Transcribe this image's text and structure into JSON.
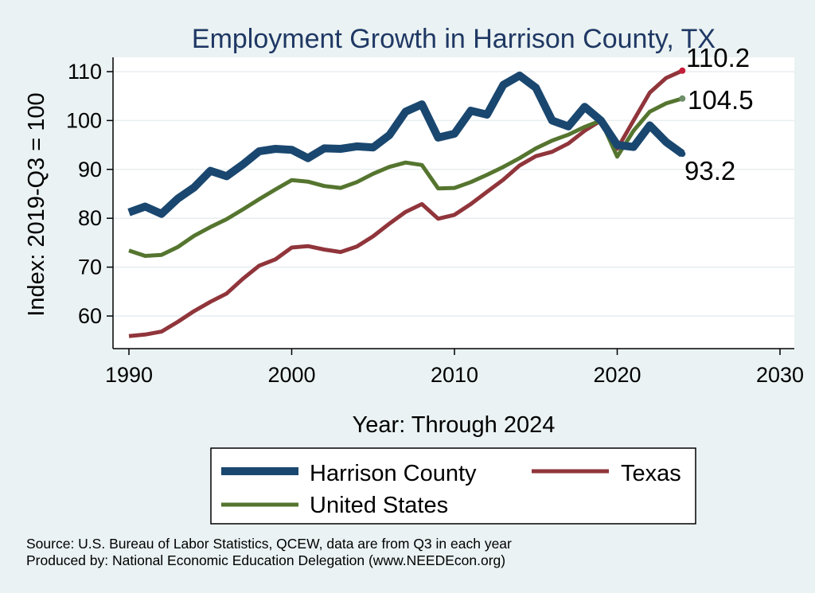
{
  "chart_data": {
    "type": "line",
    "title": "Employment Growth in Harrison County, TX",
    "xlabel": "Year: Through 2024",
    "ylabel": "Index: 2019-Q3 = 100",
    "xlim": [
      1990,
      2030
    ],
    "ylim": [
      54,
      113
    ],
    "x_ticks": [
      "1990",
      "2000",
      "2010",
      "2020",
      "2030"
    ],
    "y_ticks": [
      "60",
      "70",
      "80",
      "90",
      "100",
      "110"
    ],
    "grid": true,
    "legend_position": "bottom",
    "x": [
      1990,
      1991,
      1992,
      1993,
      1994,
      1995,
      1996,
      1997,
      1998,
      1999,
      2000,
      2001,
      2002,
      2003,
      2004,
      2005,
      2006,
      2007,
      2008,
      2009,
      2010,
      2011,
      2012,
      2013,
      2014,
      2015,
      2016,
      2017,
      2018,
      2019,
      2020,
      2021,
      2022,
      2023,
      2024
    ],
    "series": [
      {
        "name": "Harrison  County",
        "color": "#1a476f",
        "values": [
          81.2,
          82.4,
          80.9,
          84.0,
          86.3,
          89.7,
          88.6,
          91.0,
          93.7,
          94.2,
          94.0,
          92.3,
          94.3,
          94.2,
          94.7,
          94.5,
          97.0,
          101.8,
          103.3,
          96.5,
          97.3,
          102.0,
          101.2,
          107.3,
          109.2,
          106.7,
          100.0,
          98.8,
          102.8,
          100.0,
          95.0,
          94.6,
          99.0,
          95.6,
          93.2
        ]
      },
      {
        "name": "Texas",
        "color": "#90353b",
        "values": [
          55.9,
          56.2,
          56.8,
          58.8,
          61.0,
          62.9,
          64.6,
          67.6,
          70.3,
          71.6,
          74.0,
          74.3,
          73.6,
          73.1,
          74.2,
          76.3,
          78.9,
          81.3,
          82.9,
          79.9,
          80.7,
          82.9,
          85.4,
          87.9,
          90.8,
          92.7,
          93.6,
          95.3,
          97.9,
          100.0,
          94.2,
          100.0,
          105.7,
          108.7,
          110.2
        ]
      },
      {
        "name": "United States",
        "color": "#55752f",
        "values": [
          73.4,
          72.3,
          72.5,
          74.1,
          76.4,
          78.2,
          79.8,
          81.8,
          83.9,
          85.9,
          87.8,
          87.5,
          86.6,
          86.2,
          87.4,
          89.1,
          90.5,
          91.4,
          90.9,
          86.1,
          86.2,
          87.4,
          88.9,
          90.5,
          92.3,
          94.3,
          95.9,
          97.1,
          98.7,
          100.0,
          92.6,
          97.9,
          101.8,
          103.5,
          104.5
        ]
      }
    ],
    "end_labels": [
      "93.2",
      "110.2",
      "104.5"
    ],
    "notes": [
      "Source: U.S. Bureau of Labor Statistics, QCEW, data are from Q3 in each year",
      "Produced by: National Economic Education Delegation (www.NEEDEcon.org)"
    ]
  }
}
